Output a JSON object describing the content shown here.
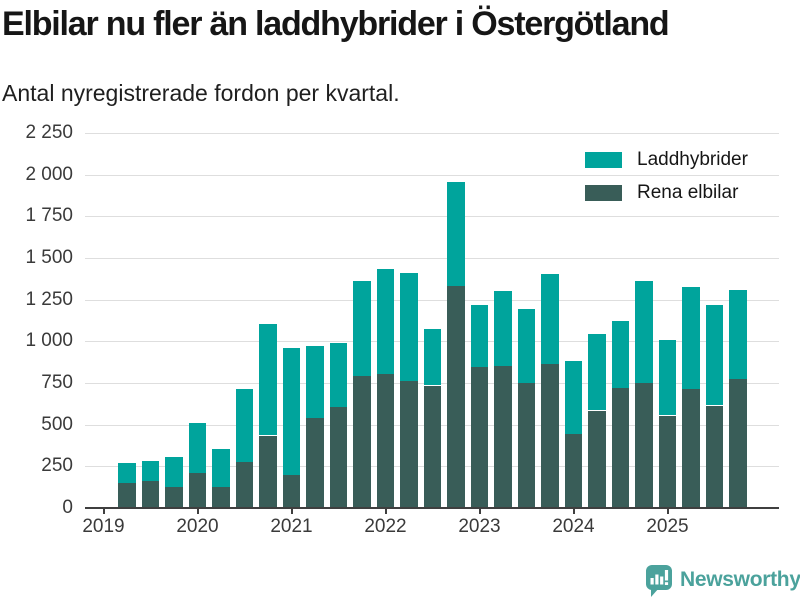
{
  "title": "Elbilar nu fler än laddhybrider i Östergötland",
  "subtitle": "Antal nyregistrerade fordon per kvartal.",
  "legend": [
    {
      "label": "Laddhybrider",
      "color": "#00A49C"
    },
    {
      "label": "Rena elbilar",
      "color": "#395D58"
    }
  ],
  "footer": {
    "brand": "Newsworthy",
    "logo_icon": "bar-chart-speech-bubble-icon",
    "brand_color": "#4BA29C"
  },
  "colors": {
    "laddhybrider": "#00A49C",
    "rena_elbilar": "#395D58",
    "gridline": "#dedede",
    "axis": "#3f3f3f",
    "axis_text": "#3a3a3a",
    "title_text": "#161616"
  },
  "chart_data": {
    "type": "bar",
    "stacked": true,
    "title": "Elbilar nu fler än laddhybrider i Östergötland",
    "subtitle": "Antal nyregistrerade fordon per kvartal.",
    "xlabel": "",
    "ylabel": "",
    "ylim": [
      0,
      2250
    ],
    "ytick_step": 250,
    "ytick_labels": [
      "0",
      "250",
      "500",
      "750",
      "1 000",
      "1 250",
      "1 500",
      "1 750",
      "2 000",
      "2 250"
    ],
    "grid": true,
    "legend_position": "top-right",
    "x": [
      "2019 Q2",
      "2019 Q3",
      "2019 Q4",
      "2020 Q1",
      "2020 Q2",
      "2020 Q3",
      "2020 Q4",
      "2021 Q1",
      "2021 Q2",
      "2021 Q3",
      "2021 Q4",
      "2022 Q1",
      "2022 Q2",
      "2022 Q3",
      "2022 Q4",
      "2023 Q1",
      "2023 Q2",
      "2023 Q3",
      "2023 Q4",
      "2024 Q1",
      "2024 Q2",
      "2024 Q3",
      "2024 Q4",
      "2025 Q1",
      "2025 Q2",
      "2025 Q3",
      "2025 Q4"
    ],
    "x_axis_year_ticks": [
      "2019",
      "2020",
      "2021",
      "2022",
      "2023",
      "2024",
      "2025"
    ],
    "series": [
      {
        "name": "Rena elbilar",
        "color": "#395D58",
        "stack_order": "bottom",
        "values": [
          150,
          160,
          125,
          210,
          125,
          275,
          435,
          200,
          540,
          605,
          790,
          805,
          760,
          735,
          1330,
          845,
          850,
          750,
          865,
          445,
          585,
          720,
          750,
          555,
          715,
          615,
          775
        ]
      },
      {
        "name": "Laddhybrider",
        "color": "#00A49C",
        "stack_order": "top",
        "values": [
          120,
          125,
          180,
          300,
          230,
          440,
          670,
          760,
          435,
          385,
          570,
          630,
          650,
          340,
          625,
          375,
          450,
          445,
          540,
          435,
          460,
          400,
          615,
          455,
          610,
          605,
          535
        ]
      }
    ]
  }
}
